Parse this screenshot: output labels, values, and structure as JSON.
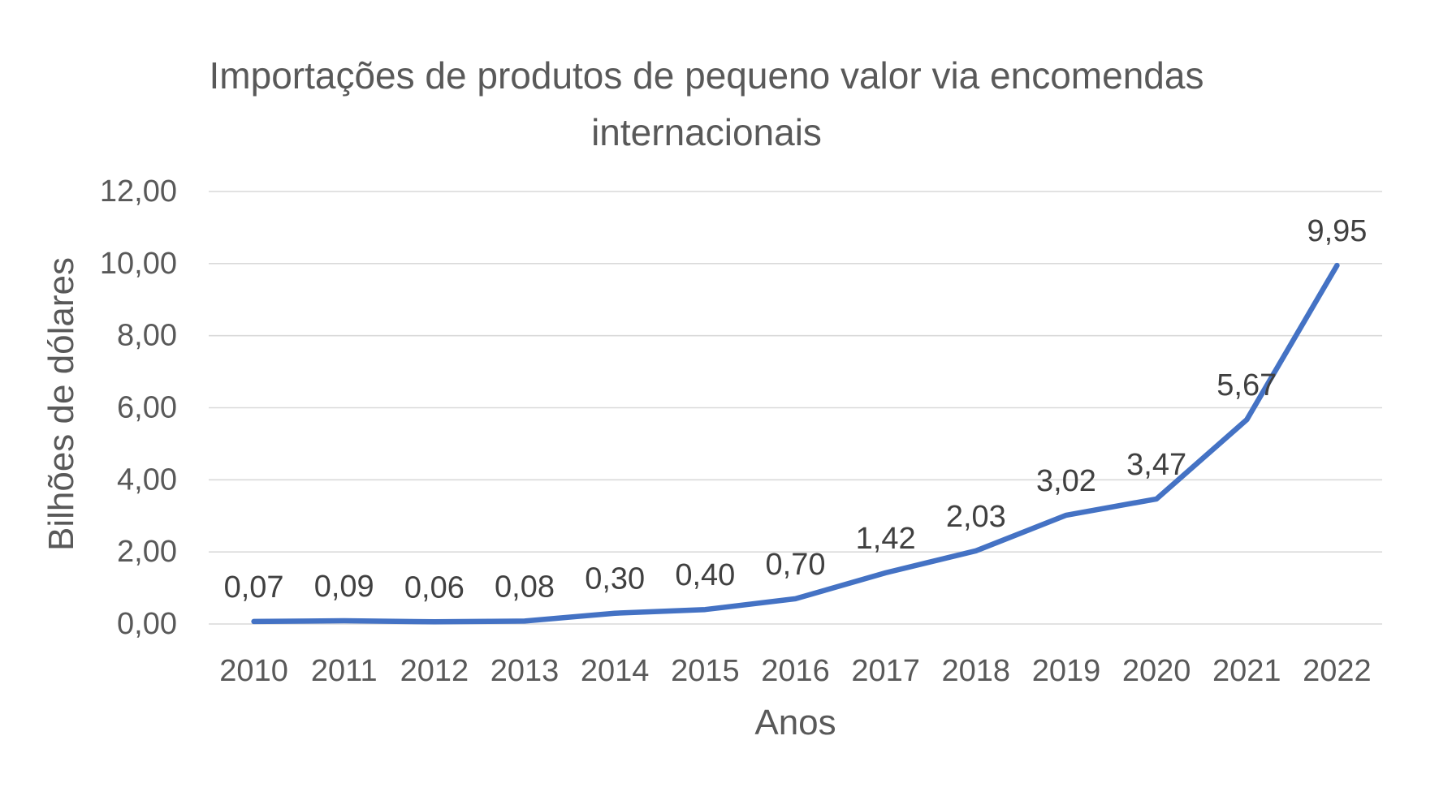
{
  "chart_data": {
    "type": "line",
    "title": "Importações de produtos de pequeno valor via encomendas internacionais",
    "title_lines": [
      "Importações de produtos de pequeno valor via encomendas",
      "internacionais"
    ],
    "xlabel": "Anos",
    "ylabel": "Bilhões de dólares",
    "categories": [
      "2010",
      "2011",
      "2012",
      "2013",
      "2014",
      "2015",
      "2016",
      "2017",
      "2018",
      "2019",
      "2020",
      "2021",
      "2022"
    ],
    "values": [
      0.07,
      0.09,
      0.06,
      0.08,
      0.3,
      0.4,
      0.7,
      1.42,
      2.03,
      3.02,
      3.47,
      5.67,
      9.95
    ],
    "data_labels": [
      "0,07",
      "0,09",
      "0,06",
      "0,08",
      "0,30",
      "0,40",
      "0,70",
      "1,42",
      "2,03",
      "3,02",
      "3,47",
      "5,67",
      "9,95"
    ],
    "ylim": [
      0,
      12
    ],
    "y_tick_step": 2,
    "y_tick_labels": [
      "0,00",
      "2,00",
      "4,00",
      "6,00",
      "8,00",
      "10,00",
      "12,00"
    ],
    "grid": true,
    "legend": "none",
    "colors": {
      "line": "#4472C4",
      "gridline": "#D9D9D9",
      "title_text": "#595959",
      "tick_text": "#595959",
      "axis_title_text": "#595959",
      "data_label_text": "#404040"
    }
  }
}
